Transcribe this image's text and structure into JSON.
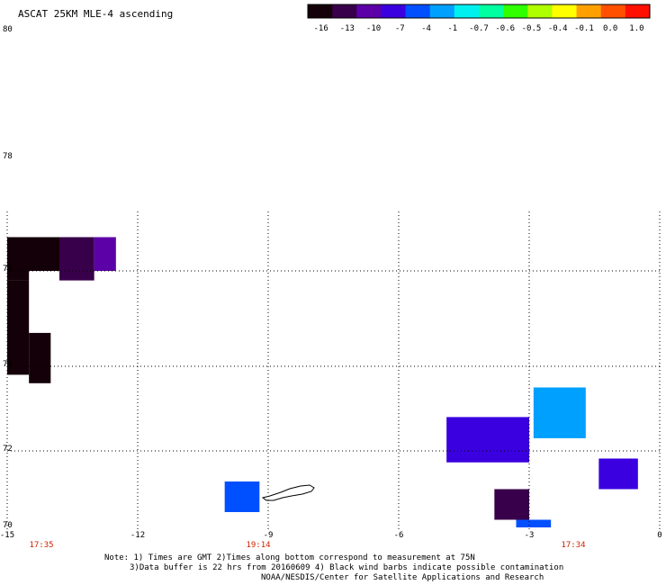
{
  "title": "ASCAT 25KM MLE-4 ascending",
  "colorbar": {
    "labels": [
      "-16",
      "-13",
      "-10",
      "-7",
      "-4",
      "-1",
      "-0.7",
      "-0.6",
      "-0.5",
      "-0.4",
      "-0.1",
      "0.0",
      "1.0"
    ],
    "colors": [
      "#140008",
      "#38004a",
      "#5c00a8",
      "#3a00e0",
      "#0050ff",
      "#00a0ff",
      "#00f0f0",
      "#00ffa0",
      "#30ff00",
      "#b0ff00",
      "#ffff00",
      "#ffa000",
      "#ff5000",
      "#ff1000"
    ]
  },
  "lat_labels": [
    "80",
    "78",
    "76",
    "74",
    "72",
    "70"
  ],
  "lon_labels": [
    "-15",
    "-12",
    "-9",
    "-6",
    "-3",
    "0"
  ],
  "time_labels": [
    "17:35",
    "19:14",
    "17:34"
  ],
  "notes": {
    "line1": "Note: 1) Times are GMT 2)Times along bottom correspond to measurement at 75N",
    "line2": "3)Data buffer is 22 hrs from 20160609 4) Black wind barbs indicate possible contamination",
    "line3": "NOAA/NESDIS/Center for Satellite Applications and Research"
  },
  "map_data": {
    "lon_range": [
      -15,
      0
    ],
    "lat_range": [
      70,
      80
    ],
    "gridlines": {
      "lon": [
        -12,
        -9,
        -6,
        -3
      ],
      "lat": [
        72,
        74,
        76
      ]
    },
    "swaths": [
      {
        "name": "west",
        "cells": [
          {
            "lon0": -15,
            "lon1": -14.5,
            "lat0": 75.8,
            "lat1": 76.6,
            "value": -16
          },
          {
            "lon0": -14.7,
            "lon1": -13.8,
            "lat0": 76.0,
            "lat1": 76.6,
            "value": -15
          },
          {
            "lon0": -13.8,
            "lon1": -13.0,
            "lat0": 75.8,
            "lat1": 76.6,
            "value": -13
          },
          {
            "lon0": -13.0,
            "lon1": -12.5,
            "lat0": 76.0,
            "lat1": 76.6,
            "value": -10
          },
          {
            "lon0": -15,
            "lon1": -14.5,
            "lat0": 73.8,
            "lat1": 75.8,
            "value": -16
          },
          {
            "lon0": -14.5,
            "lon1": -14.0,
            "lat0": 73.6,
            "lat1": 74.7,
            "value": -16
          }
        ]
      },
      {
        "name": "west-center",
        "cells": [
          {
            "lon0": -10.0,
            "lon1": -9.2,
            "lat0": 70.4,
            "lat1": 71.2,
            "value": -4
          }
        ]
      },
      {
        "name": "east",
        "cells": [
          {
            "lon0": -4.9,
            "lon1": -3.0,
            "lat0": 71.7,
            "lat1": 72.8,
            "value": -7
          },
          {
            "lon0": -2.9,
            "lon1": -1.7,
            "lat0": 72.3,
            "lat1": 73.5,
            "value": -1
          },
          {
            "lon0": -1.4,
            "lon1": -0.5,
            "lat0": 71.0,
            "lat1": 71.8,
            "value": -7
          },
          {
            "lon0": -3.8,
            "lon1": -3.0,
            "lat0": 70.2,
            "lat1": 71.0,
            "value": -13
          },
          {
            "lon0": -3.3,
            "lon1": -2.5,
            "lat0": 69.9,
            "lat1": 70.2,
            "value": -4
          }
        ]
      }
    ]
  }
}
